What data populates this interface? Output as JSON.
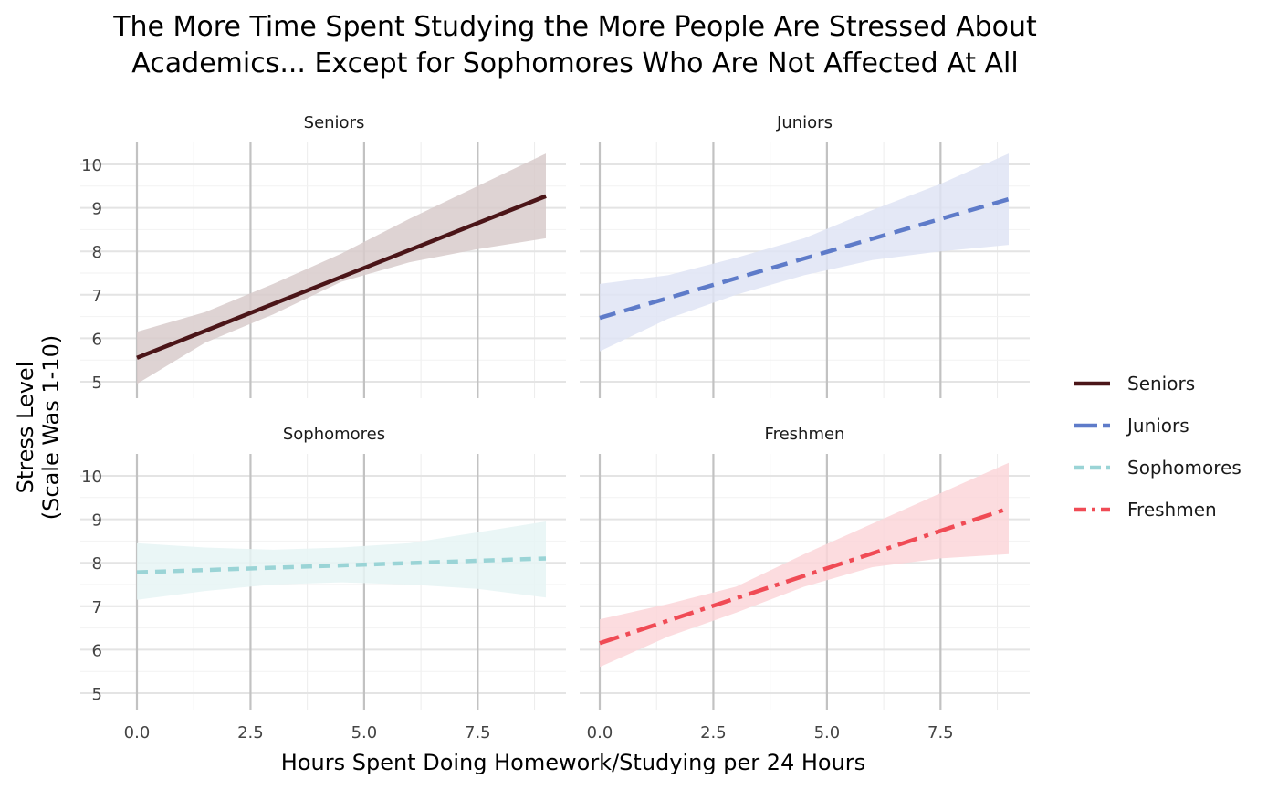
{
  "chart_data": {
    "type": "line",
    "title": [
      "The More Time Spent Studying the More People Are Stressed About",
      "Academics... Except for Sophomores Who Are Not Affected At All"
    ],
    "xlabel": "Hours Spent Doing Homework/Studying per 24 Hours",
    "ylabel": [
      "Stress Level",
      "(Scale Was 1-10)"
    ],
    "xlim": [
      0,
      9
    ],
    "ylim": [
      5,
      10
    ],
    "x_ticks": [
      0.0,
      2.5,
      5.0,
      7.5
    ],
    "x_tick_labels": [
      "0.0",
      "2.5",
      "5.0",
      "7.5"
    ],
    "y_ticks": [
      5,
      6,
      7,
      8,
      9,
      10
    ],
    "y_tick_labels": [
      "5",
      "6",
      "7",
      "8",
      "9",
      "10"
    ],
    "grid": true,
    "legend_position": "right",
    "facets": [
      {
        "name": "Seniors",
        "color": "#4b1518",
        "fill": "#d8cbcb",
        "dash": "solid",
        "line": {
          "x": [
            0,
            9
          ],
          "y": [
            5.55,
            9.27
          ]
        },
        "ribbon": {
          "x": [
            0,
            1.5,
            3,
            4.5,
            6,
            7.5,
            9
          ],
          "lower": [
            4.95,
            5.9,
            6.55,
            7.3,
            7.75,
            8.05,
            8.3
          ],
          "upper": [
            6.15,
            6.6,
            7.25,
            7.95,
            8.75,
            9.5,
            10.25
          ]
        }
      },
      {
        "name": "Juniors",
        "color": "#5e7bc9",
        "fill": "#dfe4f5",
        "dash": "dash",
        "line": {
          "x": [
            0,
            9
          ],
          "y": [
            6.47,
            9.2
          ]
        },
        "ribbon": {
          "x": [
            0,
            1.5,
            3,
            4.5,
            6,
            7.5,
            9
          ],
          "lower": [
            5.7,
            6.45,
            7.0,
            7.45,
            7.8,
            8.0,
            8.15
          ],
          "upper": [
            7.25,
            7.45,
            7.85,
            8.3,
            8.95,
            9.55,
            10.25
          ]
        }
      },
      {
        "name": "Sophomores",
        "color": "#9ad4d6",
        "fill": "#e6f4f4",
        "dash": "shortdash",
        "line": {
          "x": [
            0,
            9
          ],
          "y": [
            7.78,
            8.1
          ]
        },
        "ribbon": {
          "x": [
            0,
            1.5,
            3,
            4.5,
            6,
            7.5,
            9
          ],
          "lower": [
            7.15,
            7.35,
            7.5,
            7.55,
            7.5,
            7.4,
            7.2
          ],
          "upper": [
            8.45,
            8.35,
            8.3,
            8.35,
            8.45,
            8.7,
            8.95
          ]
        }
      },
      {
        "name": "Freshmen",
        "color": "#f04b55",
        "fill": "#fcd6d9",
        "dash": "dotdash",
        "line": {
          "x": [
            0,
            9
          ],
          "y": [
            6.15,
            9.25
          ]
        },
        "ribbon": {
          "x": [
            0,
            1.5,
            3,
            4.5,
            6,
            7.5,
            9
          ],
          "lower": [
            5.6,
            6.3,
            6.85,
            7.45,
            7.9,
            8.1,
            8.2
          ],
          "upper": [
            6.7,
            7.05,
            7.45,
            8.2,
            8.9,
            9.6,
            10.3
          ]
        }
      }
    ]
  }
}
